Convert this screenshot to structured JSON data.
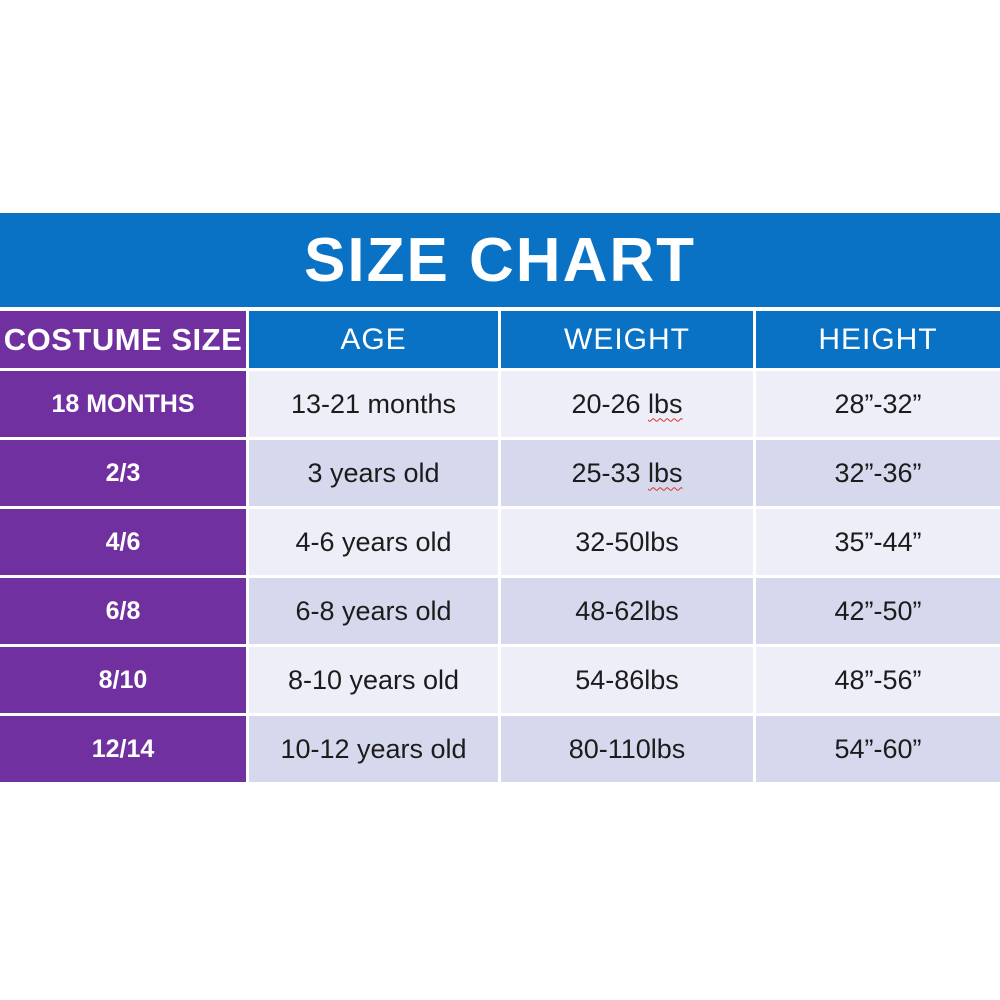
{
  "title": "SIZE CHART",
  "colors": {
    "blue": "#0a72c4",
    "purple": "#7030a0",
    "row_light": "#edeef8",
    "row_dark": "#d6d9ed",
    "squiggle_red": "#d93025",
    "text": "#1c1c1c"
  },
  "header": {
    "costume_size": "COSTUME SIZE",
    "age": "AGE",
    "weight": "WEIGHT",
    "height": "HEIGHT"
  },
  "rows": [
    {
      "size": "18 MONTHS",
      "age": "13-21 months",
      "weight_prefix": "20-26 ",
      "weight_lbs": "lbs",
      "height": "28”-32”"
    },
    {
      "size": "2/3",
      "age": "3 years old",
      "weight_prefix": "25-33 ",
      "weight_lbs": "lbs",
      "height": "32”-36”"
    },
    {
      "size": "4/6",
      "age": "4-6 years old",
      "weight_prefix": "32-50lbs",
      "weight_lbs": "",
      "height": "35”-44”"
    },
    {
      "size": "6/8",
      "age": "6-8 years old",
      "weight_prefix": "48-62lbs",
      "weight_lbs": "",
      "height": "42”-50”"
    },
    {
      "size": "8/10",
      "age": "8-10 years old",
      "weight_prefix": "54-86lbs",
      "weight_lbs": "",
      "height": "48”-56”"
    },
    {
      "size": "12/14",
      "age": "10-12 years old",
      "weight_prefix": "80-110lbs",
      "weight_lbs": "",
      "height": "54”-60”"
    }
  ],
  "chart_data": {
    "type": "table",
    "title": "SIZE CHART",
    "columns": [
      "COSTUME SIZE",
      "AGE",
      "WEIGHT",
      "HEIGHT"
    ],
    "rows": [
      [
        "18 MONTHS",
        "13-21 months",
        "20-26 lbs",
        "28”-32”"
      ],
      [
        "2/3",
        "3 years old",
        "25-33 lbs",
        "32”-36”"
      ],
      [
        "4/6",
        "4-6 years old",
        "32-50lbs",
        "35”-44”"
      ],
      [
        "6/8",
        "6-8 years old",
        "48-62lbs",
        "42”-50”"
      ],
      [
        "8/10",
        "8-10 years old",
        "54-86lbs",
        "48”-56”"
      ],
      [
        "12/14",
        "10-12 years old",
        "80-110lbs",
        "54”-60”"
      ]
    ],
    "layout_hints": {
      "title_band_color": "#0a72c4",
      "label_column_color": "#7030a0",
      "alternating_row_colors": [
        "#edeef8",
        "#d6d9ed"
      ],
      "spellcheck_squiggle_under": [
        "rows.0 weight 'lbs'",
        "rows.1 weight 'lbs'"
      ]
    }
  }
}
